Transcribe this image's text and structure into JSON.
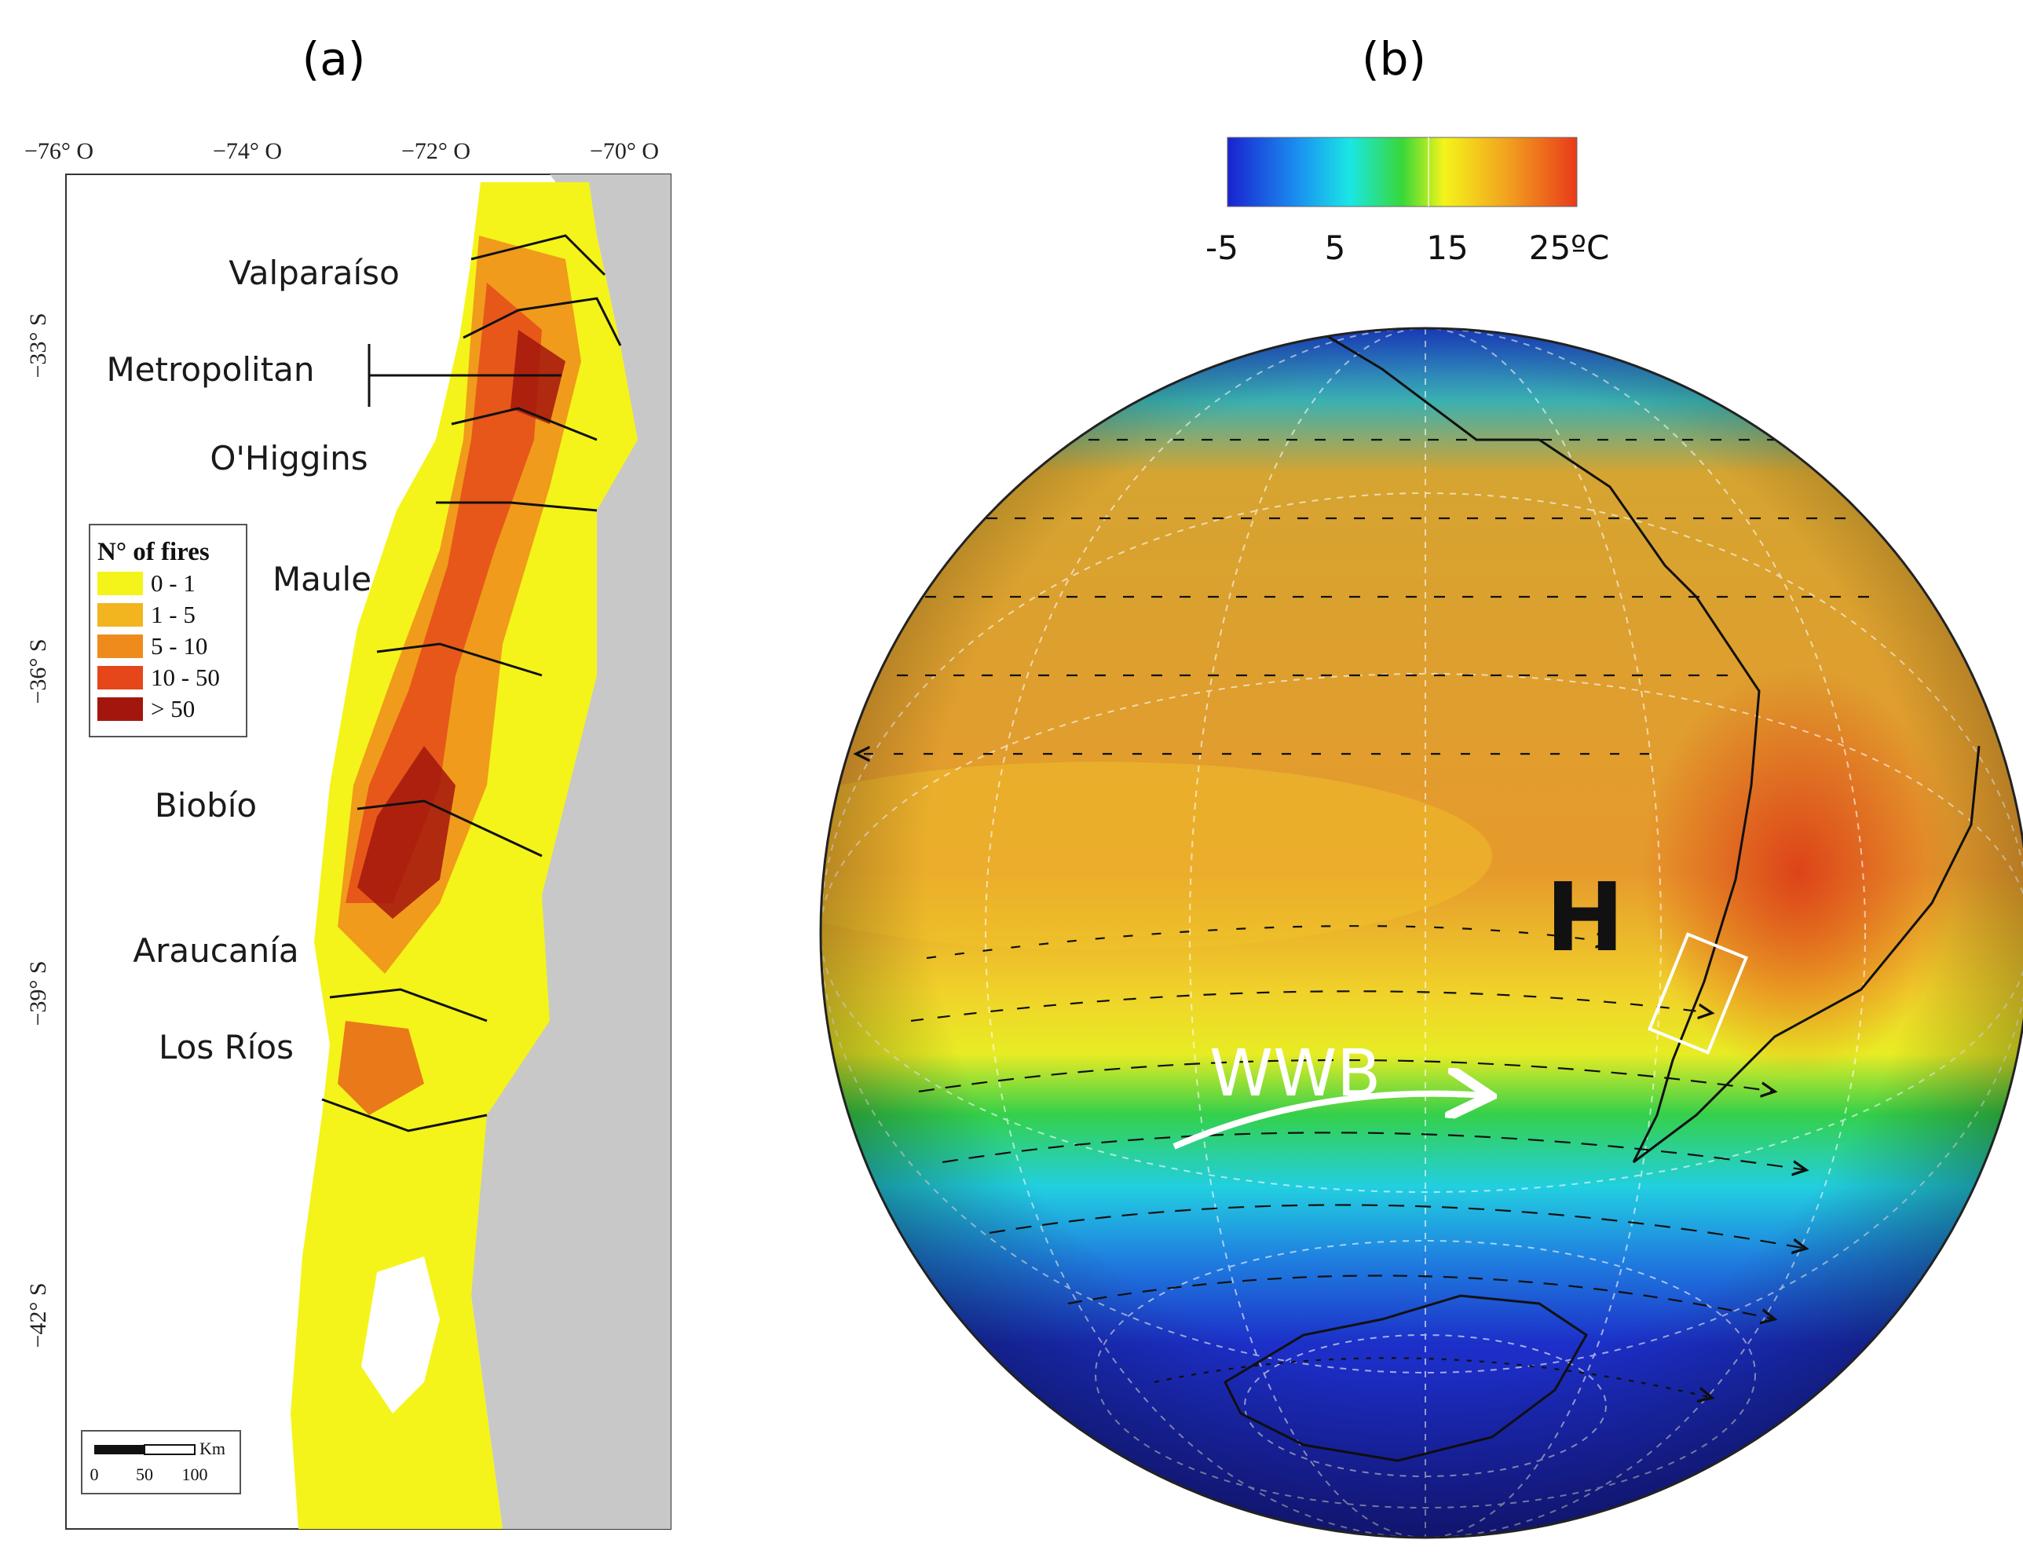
{
  "panels": {
    "a": {
      "label": "(a)",
      "longitude_ticks": [
        "−76° O",
        "−74° O",
        "−72° O",
        "−70° O"
      ],
      "latitude_ticks": [
        "−33° S",
        "−36° S",
        "−39° S",
        "−42° S"
      ],
      "regions": [
        "Valparaíso",
        "Metropolitan",
        "O'Higgins",
        "Maule",
        "Biobío",
        "Araucanía",
        "Los Ríos"
      ],
      "legend": {
        "title": "N° of fires",
        "items": [
          {
            "label": "0 - 1",
            "color": "#f4f41a"
          },
          {
            "label": "1 - 5",
            "color": "#f2b51f"
          },
          {
            "label": "5 - 10",
            "color": "#ef8b1c"
          },
          {
            "label": "10 - 50",
            "color": "#e5461a"
          },
          {
            "label": "> 50",
            "color": "#a3160d"
          }
        ]
      },
      "scale_bar": {
        "unit": "Km",
        "labels": [
          "0",
          "50",
          "100"
        ]
      }
    },
    "b": {
      "label": "(b)",
      "colorbar": {
        "ticks": [
          "-5",
          "5",
          "15",
          "25ºC"
        ],
        "colors": [
          "#1a22d0",
          "#1a8ff0",
          "#1ae6e6",
          "#38d838",
          "#f4f41a",
          "#f2a21f",
          "#e93a1a"
        ]
      },
      "annotations": {
        "high_pressure": "H",
        "westerly_belt": "WWB"
      }
    }
  }
}
